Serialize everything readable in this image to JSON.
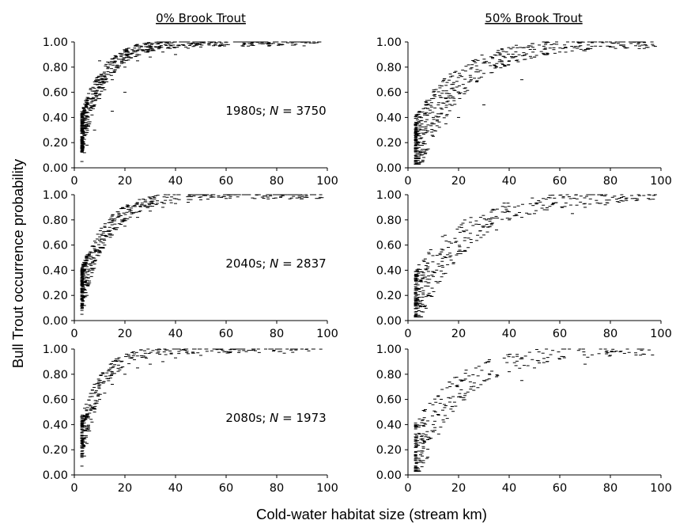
{
  "figure": {
    "column_titles": [
      "0% Brook Trout",
      "50% Brook Trout"
    ],
    "ylabel": "Bull Trout occurrence probability",
    "xlabel": "Cold-water habitat size (stream km)",
    "x_ticks": [
      "0",
      "20",
      "40",
      "60",
      "80",
      "100"
    ],
    "y_ticks": [
      "0.00",
      "0.20",
      "0.40",
      "0.60",
      "0.80",
      "1.00"
    ],
    "row_labels": [
      {
        "period": "1980s; ",
        "n_label": "N",
        "n_value": " = 3750"
      },
      {
        "period": "2040s; ",
        "n_label": "N",
        "n_value": " = 2837"
      },
      {
        "period": "2080s; ",
        "n_label": "N",
        "n_value": " = 1973"
      }
    ]
  },
  "chart_data": [
    {
      "type": "scatter",
      "panel": "1980s, 0% Brook Trout",
      "n": 3750,
      "xlim": [
        0,
        100
      ],
      "ylim": [
        0,
        1
      ],
      "points": [
        [
          3,
          0.05
        ],
        [
          4,
          0.12
        ],
        [
          5,
          0.18
        ],
        [
          5,
          0.28
        ],
        [
          6,
          0.35
        ],
        [
          7,
          0.42
        ],
        [
          8,
          0.3
        ],
        [
          8,
          0.5
        ],
        [
          10,
          0.55
        ],
        [
          10,
          0.85
        ],
        [
          12,
          0.62
        ],
        [
          15,
          0.7
        ],
        [
          15,
          0.45
        ],
        [
          20,
          0.8
        ],
        [
          20,
          0.6
        ],
        [
          25,
          0.85
        ],
        [
          30,
          0.88
        ],
        [
          35,
          0.92
        ],
        [
          40,
          0.9
        ],
        [
          45,
          0.95
        ],
        [
          50,
          0.96
        ],
        [
          55,
          0.97
        ],
        [
          60,
          0.98
        ],
        [
          70,
          0.99
        ],
        [
          80,
          1.0
        ],
        [
          90,
          1.0
        ],
        [
          97,
          1.0
        ]
      ]
    },
    {
      "type": "scatter",
      "panel": "1980s, 50% Brook Trout",
      "n": 3750,
      "xlim": [
        0,
        100
      ],
      "ylim": [
        0,
        1
      ],
      "points": [
        [
          3,
          0.03
        ],
        [
          4,
          0.08
        ],
        [
          5,
          0.12
        ],
        [
          6,
          0.2
        ],
        [
          7,
          0.3
        ],
        [
          8,
          0.15
        ],
        [
          10,
          0.4
        ],
        [
          10,
          0.25
        ],
        [
          12,
          0.5
        ],
        [
          15,
          0.55
        ],
        [
          15,
          0.35
        ],
        [
          20,
          0.6
        ],
        [
          20,
          0.4
        ],
        [
          25,
          0.7
        ],
        [
          30,
          0.75
        ],
        [
          30,
          0.5
        ],
        [
          35,
          0.8
        ],
        [
          40,
          0.85
        ],
        [
          45,
          0.7
        ],
        [
          50,
          0.88
        ],
        [
          55,
          0.9
        ],
        [
          60,
          0.92
        ],
        [
          70,
          0.93
        ],
        [
          80,
          0.96
        ],
        [
          90,
          0.97
        ],
        [
          97,
          0.97
        ]
      ]
    },
    {
      "type": "scatter",
      "panel": "2040s, 0% Brook Trout",
      "n": 2837,
      "xlim": [
        0,
        100
      ],
      "ylim": [
        0,
        1
      ],
      "points": [
        [
          3,
          0.05
        ],
        [
          4,
          0.12
        ],
        [
          5,
          0.2
        ],
        [
          6,
          0.3
        ],
        [
          7,
          0.38
        ],
        [
          8,
          0.45
        ],
        [
          10,
          0.55
        ],
        [
          12,
          0.6
        ],
        [
          15,
          0.68
        ],
        [
          20,
          0.75
        ],
        [
          25,
          0.82
        ],
        [
          30,
          0.87
        ],
        [
          35,
          0.9
        ],
        [
          40,
          0.93
        ],
        [
          45,
          0.94
        ],
        [
          50,
          0.96
        ],
        [
          60,
          0.97
        ],
        [
          75,
          0.99
        ],
        [
          85,
          1.0
        ],
        [
          95,
          1.0
        ]
      ]
    },
    {
      "type": "scatter",
      "panel": "2040s, 50% Brook Trout",
      "n": 2837,
      "xlim": [
        0,
        100
      ],
      "ylim": [
        0,
        1
      ],
      "points": [
        [
          3,
          0.04
        ],
        [
          4,
          0.1
        ],
        [
          5,
          0.15
        ],
        [
          6,
          0.22
        ],
        [
          8,
          0.3
        ],
        [
          10,
          0.35
        ],
        [
          12,
          0.45
        ],
        [
          15,
          0.5
        ],
        [
          20,
          0.55
        ],
        [
          25,
          0.62
        ],
        [
          30,
          0.68
        ],
        [
          35,
          0.72
        ],
        [
          40,
          0.8
        ],
        [
          45,
          0.82
        ],
        [
          50,
          0.85
        ],
        [
          55,
          0.88
        ],
        [
          65,
          0.85
        ],
        [
          70,
          0.9
        ],
        [
          78,
          0.92
        ],
        [
          85,
          0.95
        ],
        [
          95,
          0.97
        ]
      ]
    },
    {
      "type": "scatter",
      "panel": "2080s, 0% Brook Trout",
      "n": 1973,
      "xlim": [
        0,
        100
      ],
      "ylim": [
        0,
        1
      ],
      "points": [
        [
          3,
          0.07
        ],
        [
          4,
          0.15
        ],
        [
          5,
          0.25
        ],
        [
          6,
          0.35
        ],
        [
          7,
          0.42
        ],
        [
          8,
          0.5
        ],
        [
          10,
          0.6
        ],
        [
          12,
          0.65
        ],
        [
          15,
          0.72
        ],
        [
          20,
          0.8
        ],
        [
          25,
          0.85
        ],
        [
          30,
          0.88
        ],
        [
          35,
          0.9
        ],
        [
          40,
          0.93
        ],
        [
          50,
          0.95
        ],
        [
          60,
          0.98
        ],
        [
          70,
          0.99
        ],
        [
          80,
          1.0
        ],
        [
          90,
          1.0
        ]
      ]
    },
    {
      "type": "scatter",
      "panel": "2080s, 50% Brook Trout",
      "n": 1973,
      "xlim": [
        0,
        100
      ],
      "ylim": [
        0,
        1
      ],
      "points": [
        [
          3,
          0.05
        ],
        [
          4,
          0.1
        ],
        [
          5,
          0.16
        ],
        [
          6,
          0.25
        ],
        [
          8,
          0.3
        ],
        [
          10,
          0.4
        ],
        [
          12,
          0.48
        ],
        [
          15,
          0.55
        ],
        [
          20,
          0.62
        ],
        [
          25,
          0.7
        ],
        [
          30,
          0.75
        ],
        [
          35,
          0.78
        ],
        [
          40,
          0.82
        ],
        [
          45,
          0.75
        ],
        [
          50,
          0.85
        ],
        [
          55,
          0.9
        ],
        [
          60,
          0.92
        ],
        [
          70,
          0.88
        ],
        [
          80,
          0.95
        ],
        [
          90,
          0.97
        ]
      ]
    }
  ]
}
